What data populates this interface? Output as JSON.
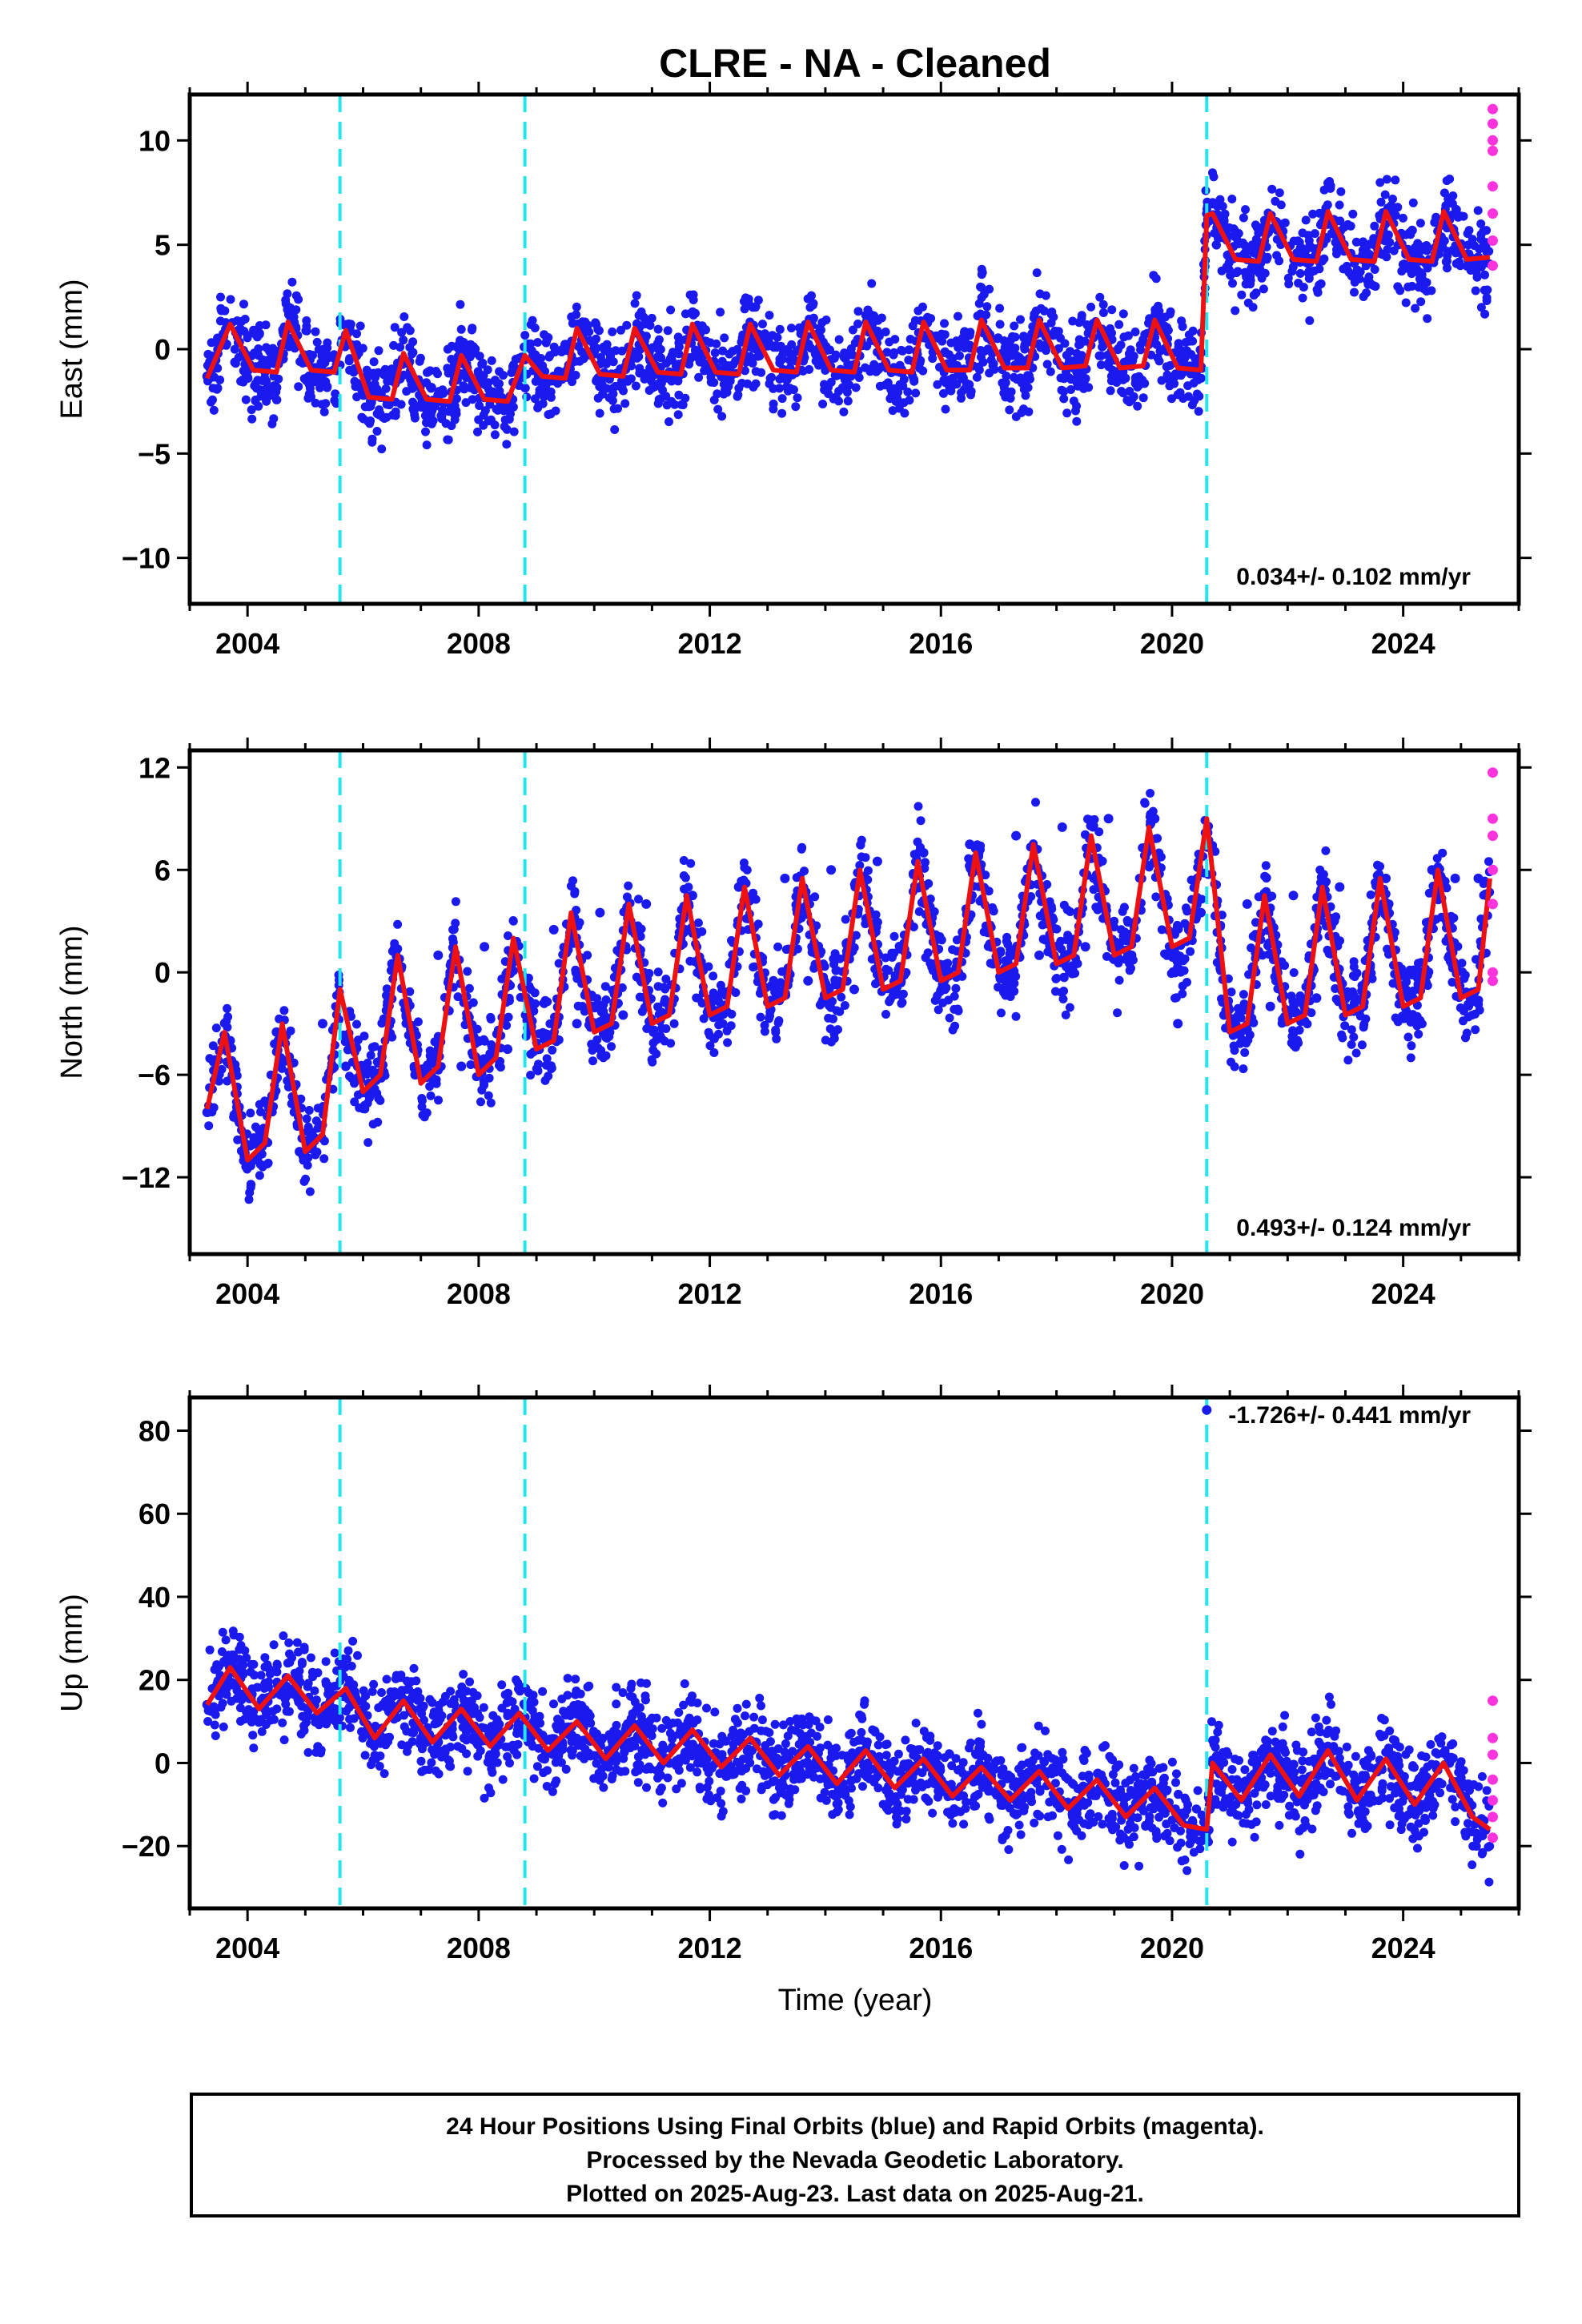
{
  "title": "CLRE  - NA - Cleaned",
  "x_label": "Time (year)",
  "footer_lines": [
    "24 Hour Positions Using Final Orbits (blue) and Rapid Orbits (magenta).",
    "Processed by the Nevada Geodetic Laboratory.",
    "Plotted on 2025-Aug-23. Last data on 2025-Aug-21."
  ],
  "colors": {
    "final_orbits": "#1a1aee",
    "rapid_orbits": "#ff33dd",
    "model": "#ee1111",
    "breaks": "#22e5ee",
    "axes": "#000000"
  },
  "chart_data": [
    {
      "type": "scatter",
      "ylabel": "East (mm)",
      "rate_label": "0.034+/- 0.102 mm/yr",
      "xlim": [
        2003.0,
        2026.0
      ],
      "ylim": [
        -12.2,
        12.2
      ],
      "xticks": [
        2004,
        2008,
        2012,
        2016,
        2020,
        2024
      ],
      "yticks": [
        -10,
        -5,
        0,
        5,
        10
      ],
      "ytick_labels": [
        "−10",
        "−5",
        "0",
        "5",
        "10"
      ],
      "grid": false,
      "vlines": [
        2005.6,
        2008.8,
        2020.6
      ],
      "series": [
        {
          "role": "data",
          "x": [
            2003.3,
            2003.8,
            2004.3,
            2004.8,
            2005.3,
            2005.8,
            2006.3,
            2006.8,
            2007.3,
            2007.8,
            2008.3,
            2008.8,
            2009.3,
            2009.8,
            2010.3,
            2010.8,
            2011.3,
            2011.8,
            2012.3,
            2012.8,
            2013.3,
            2013.8,
            2014.3,
            2014.8,
            2015.3,
            2015.8,
            2016.3,
            2016.8,
            2017.3,
            2017.8,
            2018.3,
            2018.8,
            2019.3,
            2019.8,
            2020.3,
            2020.8,
            2021.3,
            2021.8,
            2022.3,
            2022.8,
            2023.3,
            2023.8,
            2024.3,
            2024.8,
            2025.3
          ],
          "y": [
            -1.3,
            0.8,
            -1.0,
            0.4,
            -1.1,
            0.2,
            -2.3,
            -0.6,
            -2.2,
            -0.9,
            -2.3,
            -0.5,
            -1.3,
            0.6,
            -1.2,
            0.7,
            -1.1,
            0.6,
            -1.2,
            0.6,
            -1.1,
            0.7,
            -1.1,
            0.8,
            -1.1,
            0.7,
            -1.0,
            0.8,
            -0.9,
            0.9,
            -0.9,
            0.9,
            -0.8,
            0.9,
            -0.9,
            5.9,
            4.3,
            6.1,
            4.2,
            6.2,
            4.3,
            6.3,
            4.3,
            6.2,
            4.4
          ]
        },
        {
          "role": "rapid",
          "x": [
            2025.55,
            2025.55,
            2025.55,
            2025.55,
            2025.55,
            2025.55,
            2025.55,
            2025.55
          ],
          "y": [
            11.5,
            10.8,
            10.0,
            9.5,
            7.8,
            6.5,
            5.2,
            4.0
          ]
        },
        {
          "role": "model",
          "x": [
            2003.3,
            2003.7,
            2004.1,
            2004.5,
            2004.7,
            2005.1,
            2005.5,
            2005.7,
            2006.1,
            2006.5,
            2006.7,
            2007.1,
            2007.5,
            2007.7,
            2008.1,
            2008.5,
            2008.8,
            2009.1,
            2009.5,
            2009.7,
            2010.1,
            2010.5,
            2010.7,
            2011.1,
            2011.5,
            2011.7,
            2012.1,
            2012.5,
            2012.7,
            2013.1,
            2013.5,
            2013.7,
            2014.1,
            2014.5,
            2014.7,
            2015.1,
            2015.5,
            2015.7,
            2016.1,
            2016.5,
            2016.7,
            2017.1,
            2017.5,
            2017.7,
            2018.1,
            2018.5,
            2018.7,
            2019.1,
            2019.5,
            2019.7,
            2020.1,
            2020.5,
            2020.6,
            2020.7,
            2021.1,
            2021.5,
            2021.7,
            2022.1,
            2022.5,
            2022.7,
            2023.1,
            2023.5,
            2023.7,
            2024.1,
            2024.5,
            2024.7,
            2025.1,
            2025.5
          ],
          "y": [
            -1.4,
            1.2,
            -1.0,
            -1.1,
            1.3,
            -1.0,
            -1.1,
            0.9,
            -2.3,
            -2.4,
            -0.2,
            -2.4,
            -2.5,
            -0.3,
            -2.4,
            -2.5,
            -0.3,
            -1.3,
            -1.4,
            1.0,
            -1.2,
            -1.3,
            1.0,
            -1.1,
            -1.2,
            1.2,
            -1.1,
            -1.2,
            1.2,
            -1.0,
            -1.1,
            1.3,
            -1.0,
            -1.1,
            1.3,
            -1.0,
            -1.1,
            1.3,
            -1.0,
            -1.0,
            1.4,
            -0.9,
            -0.9,
            1.4,
            -0.9,
            -0.8,
            1.4,
            -0.9,
            -0.8,
            1.4,
            -0.9,
            -1.0,
            6.4,
            6.5,
            4.3,
            4.2,
            6.5,
            4.3,
            4.2,
            6.6,
            4.3,
            4.2,
            6.6,
            4.3,
            4.2,
            6.6,
            4.3,
            4.4
          ]
        }
      ]
    },
    {
      "type": "scatter",
      "ylabel": "North (mm)",
      "rate_label": "0.493+/- 0.124 mm/yr",
      "xlim": [
        2003.0,
        2026.0
      ],
      "ylim": [
        -16.5,
        13.0
      ],
      "xticks": [
        2004,
        2008,
        2012,
        2016,
        2020,
        2024
      ],
      "yticks": [
        -12,
        -6,
        0,
        6,
        12
      ],
      "ytick_labels": [
        "−12",
        "−6",
        "0",
        "6",
        "12"
      ],
      "grid": false,
      "vlines": [
        2005.6,
        2008.8,
        2020.6
      ],
      "series": [
        {
          "role": "data",
          "x": [
            2003.3,
            2003.7,
            2004.1,
            2004.5,
            2004.9,
            2005.3,
            2005.7,
            2006.1,
            2006.5,
            2006.9,
            2007.3,
            2007.7,
            2008.1,
            2008.5,
            2008.9,
            2009.3,
            2009.7,
            2010.1,
            2010.5,
            2010.9,
            2011.3,
            2011.7,
            2012.1,
            2012.5,
            2012.9,
            2013.3,
            2013.7,
            2014.1,
            2014.5,
            2014.9,
            2015.3,
            2015.7,
            2016.1,
            2016.5,
            2016.9,
            2017.3,
            2017.7,
            2018.1,
            2018.5,
            2018.9,
            2019.3,
            2019.7,
            2020.1,
            2020.5,
            2020.9,
            2021.3,
            2021.7,
            2022.1,
            2022.5,
            2022.9,
            2023.3,
            2023.7,
            2024.1,
            2024.5,
            2024.9,
            2025.3
          ],
          "y": [
            -8.2,
            -4.0,
            -11.0,
            -3.5,
            -10.5,
            -3.0,
            -5.5,
            -6.5,
            0.5,
            -6.0,
            1.0,
            -5.5,
            1.5,
            -4.5,
            -3.0,
            2.5,
            -3.0,
            3.5,
            -2.5,
            4.0,
            -2.0,
            4.5,
            -1.5,
            5.0,
            -1.0,
            5.5,
            -0.5,
            6.0,
            -1.0,
            6.5,
            -0.5,
            7.0,
            0.0,
            7.5,
            0.5,
            8.0,
            1.0,
            8.5,
            1.5,
            9.0,
            1.0,
            9.0,
            -3.0,
            3.5,
            -2.5,
            4.0,
            -2.0,
            4.5,
            -1.5,
            5.0,
            -1.5,
            5.5,
            -1.5,
            6.0,
            5.5,
            5.5
          ]
        },
        {
          "role": "rapid",
          "x": [
            2025.55,
            2025.55,
            2025.55,
            2025.55,
            2025.55,
            2025.55,
            2025.55
          ],
          "y": [
            11.7,
            9.0,
            8.0,
            6.0,
            4.0,
            0.0,
            -0.5
          ]
        },
        {
          "role": "model",
          "x": [
            2003.3,
            2003.6,
            2004.0,
            2004.3,
            2004.6,
            2005.0,
            2005.3,
            2005.6,
            2006.0,
            2006.3,
            2006.6,
            2007.0,
            2007.3,
            2007.6,
            2008.0,
            2008.3,
            2008.6,
            2009.0,
            2009.3,
            2009.6,
            2010.0,
            2010.3,
            2010.6,
            2011.0,
            2011.3,
            2011.6,
            2012.0,
            2012.3,
            2012.6,
            2013.0,
            2013.3,
            2013.6,
            2014.0,
            2014.3,
            2014.6,
            2015.0,
            2015.3,
            2015.6,
            2016.0,
            2016.3,
            2016.6,
            2017.0,
            2017.3,
            2017.6,
            2018.0,
            2018.3,
            2018.6,
            2019.0,
            2019.3,
            2019.6,
            2020.0,
            2020.3,
            2020.6,
            2021.0,
            2021.3,
            2021.6,
            2022.0,
            2022.3,
            2022.6,
            2023.0,
            2023.3,
            2023.6,
            2024.0,
            2024.3,
            2024.6,
            2025.0,
            2025.3,
            2025.5
          ],
          "y": [
            -8.0,
            -3.5,
            -11.0,
            -10.0,
            -3.0,
            -10.5,
            -9.5,
            -1.0,
            -7.0,
            -6.0,
            1.0,
            -6.5,
            -5.5,
            1.5,
            -6.0,
            -5.0,
            2.0,
            -4.5,
            -4.0,
            3.5,
            -3.5,
            -3.0,
            4.0,
            -3.0,
            -2.5,
            4.5,
            -2.5,
            -2.0,
            5.0,
            -2.0,
            -1.5,
            5.5,
            -1.5,
            -1.0,
            6.0,
            -1.0,
            -0.5,
            6.5,
            -0.5,
            0.0,
            7.0,
            0.0,
            0.5,
            7.5,
            0.5,
            1.0,
            8.0,
            1.0,
            1.5,
            8.5,
            1.5,
            2.0,
            9.0,
            -3.5,
            -3.0,
            4.5,
            -3.0,
            -2.5,
            5.0,
            -2.5,
            -2.0,
            5.5,
            -2.0,
            -1.5,
            6.0,
            -1.5,
            -1.0,
            5.5
          ]
        }
      ]
    },
    {
      "type": "scatter",
      "ylabel": "Up (mm)",
      "rate_label": "-1.726+/- 0.441 mm/yr",
      "xlim": [
        2003.0,
        2026.0
      ],
      "ylim": [
        -35.0,
        88.0
      ],
      "xticks": [
        2004,
        2008,
        2012,
        2016,
        2020,
        2024
      ],
      "yticks": [
        -20,
        0,
        20,
        40,
        60,
        80
      ],
      "ytick_labels": [
        "−20",
        "0",
        "20",
        "40",
        "60",
        "80"
      ],
      "grid": false,
      "vlines": [
        2005.6,
        2008.8,
        2020.6
      ],
      "series": [
        {
          "role": "data",
          "x": [
            2003.3,
            2003.8,
            2004.3,
            2004.8,
            2005.3,
            2005.8,
            2006.3,
            2006.8,
            2007.3,
            2007.8,
            2008.3,
            2008.8,
            2009.3,
            2009.8,
            2010.3,
            2010.8,
            2011.3,
            2011.8,
            2012.3,
            2012.8,
            2013.3,
            2013.8,
            2014.3,
            2014.8,
            2015.3,
            2015.8,
            2016.3,
            2016.8,
            2017.3,
            2017.8,
            2018.3,
            2018.8,
            2019.3,
            2019.8,
            2020.3,
            2020.8,
            2021.3,
            2021.8,
            2022.3,
            2022.8,
            2023.3,
            2023.8,
            2024.3,
            2024.8,
            2025.3
          ],
          "y": [
            14,
            22,
            13,
            20,
            12,
            17,
            6,
            15,
            5,
            13,
            4,
            11,
            3,
            10,
            1,
            8,
            0,
            7,
            -1,
            5,
            -3,
            3,
            -5,
            2,
            -6,
            0,
            -8,
            -1,
            -9,
            -3,
            -11,
            -4,
            -13,
            -6,
            -15,
            0,
            -9,
            2,
            -8,
            3,
            -9,
            1,
            -10,
            0,
            -14
          ]
        },
        {
          "role": "rapid",
          "x": [
            2025.55,
            2025.55,
            2025.55,
            2025.55,
            2025.55,
            2025.55,
            2025.55
          ],
          "y": [
            15,
            6,
            2,
            -4,
            -9,
            -13,
            -18
          ]
        },
        {
          "role": "outlier",
          "x": [
            2020.6
          ],
          "y": [
            85
          ]
        },
        {
          "role": "model",
          "x": [
            2003.3,
            2003.7,
            2004.2,
            2004.7,
            2005.2,
            2005.7,
            2006.2,
            2006.7,
            2007.2,
            2007.7,
            2008.2,
            2008.7,
            2009.2,
            2009.7,
            2010.2,
            2010.7,
            2011.2,
            2011.7,
            2012.2,
            2012.7,
            2013.2,
            2013.7,
            2014.2,
            2014.7,
            2015.2,
            2015.7,
            2016.2,
            2016.7,
            2017.2,
            2017.7,
            2018.2,
            2018.7,
            2019.2,
            2019.7,
            2020.2,
            2020.6,
            2020.7,
            2021.2,
            2021.7,
            2022.2,
            2022.7,
            2023.2,
            2023.7,
            2024.2,
            2024.7,
            2025.2,
            2025.5
          ],
          "y": [
            14,
            23,
            13,
            21,
            12,
            18,
            6,
            15,
            5,
            13,
            4,
            12,
            3,
            10,
            1,
            9,
            0,
            8,
            -1,
            6,
            -3,
            4,
            -5,
            3,
            -6,
            1,
            -8,
            -1,
            -9,
            -2,
            -11,
            -4,
            -13,
            -6,
            -15,
            -16,
            0,
            -9,
            2,
            -8,
            3,
            -9,
            1,
            -10,
            0,
            -13,
            -16
          ]
        }
      ]
    }
  ]
}
